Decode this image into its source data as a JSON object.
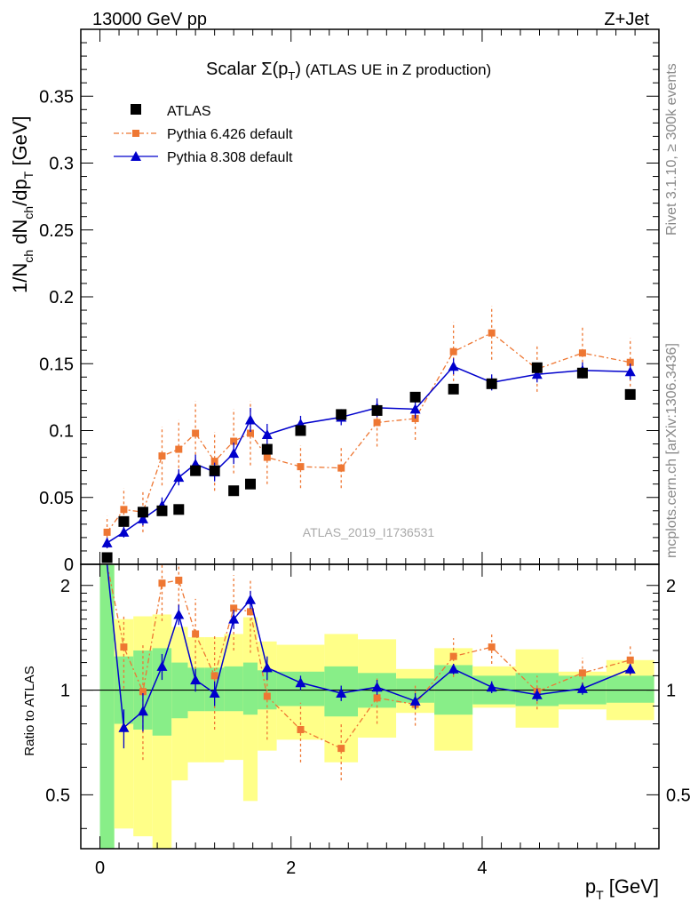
{
  "header": {
    "left": "13000 GeV pp",
    "right": "Z+Jet"
  },
  "side_labels": {
    "rivet": "Rivet 3.1.10, ≥ 300k events",
    "mcplots": "mcplots.cern.ch [arXiv:1306.3436]"
  },
  "watermark": "ATLAS_2019_I1736531",
  "colors": {
    "atlas": "#000000",
    "py6": "#ee7733",
    "py8": "#0000cc",
    "band_inner": "#88ee88",
    "band_outer": "#ffff88"
  },
  "chart_data": [
    {
      "type": "scatter",
      "title": "Scalar Σ(p_T) (ATLAS UE in Z production)",
      "title_main": "Scalar ",
      "title_sigma": "Σ(p",
      "title_sub": "T",
      "title_close": ")",
      "title_rest": " (ATLAS UE in Z production)",
      "ylabel": "1/N_ch dN_ch/dp_T [GeV]",
      "ylabel_main": "1/N",
      "ylabel_sub1": "ch",
      "ylabel_mid": " dN",
      "ylabel_sub2": "ch",
      "ylabel_mid2": "/dp",
      "ylabel_sub3": "T",
      "ylabel_end": " [GeV]",
      "xlim": [
        -0.2,
        5.85
      ],
      "ylim": [
        0,
        0.4
      ],
      "yticks": [
        0,
        0.05,
        0.1,
        0.15,
        0.2,
        0.25,
        0.3,
        0.35
      ],
      "ytick_labels": [
        "0",
        "0.05",
        "0.1",
        "0.15",
        "0.2",
        "0.25",
        "0.3",
        "0.35"
      ],
      "legend": [
        "ATLAS",
        "Pythia 6.426 default",
        "Pythia 8.308 default"
      ],
      "legend_position": "top-left",
      "x": [
        0.075,
        0.25,
        0.45,
        0.65,
        0.825,
        1.0,
        1.2,
        1.4,
        1.575,
        1.75,
        2.1,
        2.525,
        2.9,
        3.3,
        3.7,
        4.1,
        4.575,
        5.05,
        5.55
      ],
      "series": [
        {
          "name": "ATLAS",
          "values": [
            0.005,
            0.032,
            0.039,
            0.04,
            0.041,
            0.07,
            0.07,
            0.055,
            0.06,
            0.086,
            0.1,
            0.112,
            0.115,
            0.125,
            0.131,
            0.135,
            0.147,
            0.143,
            0.127
          ]
        },
        {
          "name": "Pythia 6.426 default",
          "values": [
            0.024,
            0.041,
            0.039,
            0.081,
            0.086,
            0.098,
            0.077,
            0.092,
            0.098,
            0.08,
            0.073,
            0.072,
            0.106,
            0.109,
            0.159,
            0.173,
            0.146,
            0.158,
            0.151
          ],
          "errors": [
            0.012,
            0.016,
            0.015,
            0.022,
            0.022,
            0.024,
            0.022,
            0.024,
            0.024,
            0.02,
            0.016,
            0.015,
            0.018,
            0.016,
            0.022,
            0.02,
            0.017,
            0.019,
            0.018
          ]
        },
        {
          "name": "Pythia 8.308 default",
          "values": [
            0.016,
            0.024,
            0.034,
            0.044,
            0.065,
            0.075,
            0.069,
            0.083,
            0.108,
            0.097,
            0.105,
            0.11,
            0.117,
            0.116,
            0.148,
            0.136,
            0.142,
            0.145,
            0.144
          ],
          "errors": [
            0.004,
            0.004,
            0.005,
            0.006,
            0.006,
            0.007,
            0.007,
            0.008,
            0.009,
            0.008,
            0.006,
            0.006,
            0.007,
            0.007,
            0.006,
            0.006,
            0.006,
            0.006,
            0.006
          ]
        }
      ]
    },
    {
      "type": "line",
      "title": "Ratio to ATLAS",
      "ylabel": "Ratio to ATLAS",
      "xlabel": "p_T [GeV]",
      "xlabel_main": "p",
      "xlabel_sub": "T",
      "xlabel_unit": " [GeV]",
      "xlim": [
        -0.2,
        5.85
      ],
      "ylim": [
        0.35,
        2.3
      ],
      "yscale": "log",
      "ytick_labels": [
        "0.5",
        "1",
        "2"
      ],
      "yticks": [
        0.5,
        1,
        2
      ],
      "xticks": [
        0,
        2,
        4
      ],
      "xtick_labels": [
        "0",
        "2",
        "4"
      ],
      "reference_line": 1,
      "bins": [
        {
          "lo": 0.0,
          "hi": 0.15,
          "inner": [
            0.35,
            2.3
          ],
          "outer": [
            0.35,
            2.3
          ]
        },
        {
          "lo": 0.15,
          "hi": 0.35,
          "inner": [
            0.8,
            1.25
          ],
          "outer": [
            0.4,
            1.6
          ]
        },
        {
          "lo": 0.35,
          "hi": 0.55,
          "inner": [
            0.77,
            1.3
          ],
          "outer": [
            0.38,
            1.63
          ]
        },
        {
          "lo": 0.55,
          "hi": 0.75,
          "inner": [
            0.74,
            1.32
          ],
          "outer": [
            0.35,
            1.65
          ]
        },
        {
          "lo": 0.75,
          "hi": 0.92,
          "inner": [
            0.83,
            1.2
          ],
          "outer": [
            0.55,
            1.52
          ]
        },
        {
          "lo": 0.92,
          "hi": 1.1,
          "inner": [
            0.87,
            1.16
          ],
          "outer": [
            0.62,
            1.42
          ]
        },
        {
          "lo": 1.1,
          "hi": 1.3,
          "inner": [
            0.87,
            1.16
          ],
          "outer": [
            0.62,
            1.42
          ]
        },
        {
          "lo": 1.3,
          "hi": 1.5,
          "inner": [
            0.87,
            1.17
          ],
          "outer": [
            0.63,
            1.45
          ]
        },
        {
          "lo": 1.5,
          "hi": 1.65,
          "inner": [
            0.85,
            1.2
          ],
          "outer": [
            0.48,
            1.62
          ]
        },
        {
          "lo": 1.65,
          "hi": 1.85,
          "inner": [
            0.88,
            1.14
          ],
          "outer": [
            0.67,
            1.38
          ]
        },
        {
          "lo": 1.85,
          "hi": 2.35,
          "inner": [
            0.9,
            1.13
          ],
          "outer": [
            0.72,
            1.35
          ]
        },
        {
          "lo": 2.35,
          "hi": 2.7,
          "inner": [
            0.84,
            1.17
          ],
          "outer": [
            0.62,
            1.45
          ]
        },
        {
          "lo": 2.7,
          "hi": 3.1,
          "inner": [
            0.89,
            1.12
          ],
          "outer": [
            0.73,
            1.4
          ]
        },
        {
          "lo": 3.1,
          "hi": 3.5,
          "inner": [
            0.92,
            1.08
          ],
          "outer": [
            0.86,
            1.15
          ]
        },
        {
          "lo": 3.5,
          "hi": 3.9,
          "inner": [
            0.85,
            1.18
          ],
          "outer": [
            0.67,
            1.32
          ]
        },
        {
          "lo": 3.9,
          "hi": 4.35,
          "inner": [
            0.91,
            1.1
          ],
          "outer": [
            0.89,
            1.17
          ]
        },
        {
          "lo": 4.35,
          "hi": 4.8,
          "inner": [
            0.9,
            1.12
          ],
          "outer": [
            0.78,
            1.31
          ]
        },
        {
          "lo": 4.8,
          "hi": 5.3,
          "inner": [
            0.91,
            1.1
          ],
          "outer": [
            0.88,
            1.13
          ]
        },
        {
          "lo": 5.3,
          "hi": 5.8,
          "inner": [
            0.92,
            1.1
          ],
          "outer": [
            0.82,
            1.22
          ]
        }
      ],
      "series": [
        {
          "name": "Pythia 6.426 default",
          "values": [
            2.3,
            1.33,
            0.99,
            2.03,
            2.07,
            1.45,
            1.1,
            1.72,
            1.68,
            0.96,
            0.77,
            0.68,
            0.95,
            0.91,
            1.25,
            1.33,
            0.99,
            1.12,
            1.22
          ],
          "errors": [
            0.0,
            0.32,
            0.36,
            0.45,
            0.45,
            0.38,
            0.33,
            0.42,
            0.4,
            0.24,
            0.15,
            0.13,
            0.15,
            0.12,
            0.16,
            0.14,
            0.11,
            0.12,
            0.12
          ]
        },
        {
          "name": "Pythia 8.308 default",
          "values": [
            2.3,
            0.78,
            0.87,
            1.17,
            1.65,
            1.07,
            0.98,
            1.6,
            1.82,
            1.16,
            1.05,
            0.98,
            1.02,
            0.93,
            1.15,
            1.02,
            0.97,
            1.01,
            1.15
          ],
          "errors": [
            0.0,
            0.1,
            0.11,
            0.1,
            0.11,
            0.08,
            0.08,
            0.1,
            0.11,
            0.09,
            0.05,
            0.05,
            0.05,
            0.05,
            0.04,
            0.04,
            0.04,
            0.04,
            0.04
          ]
        }
      ]
    }
  ]
}
